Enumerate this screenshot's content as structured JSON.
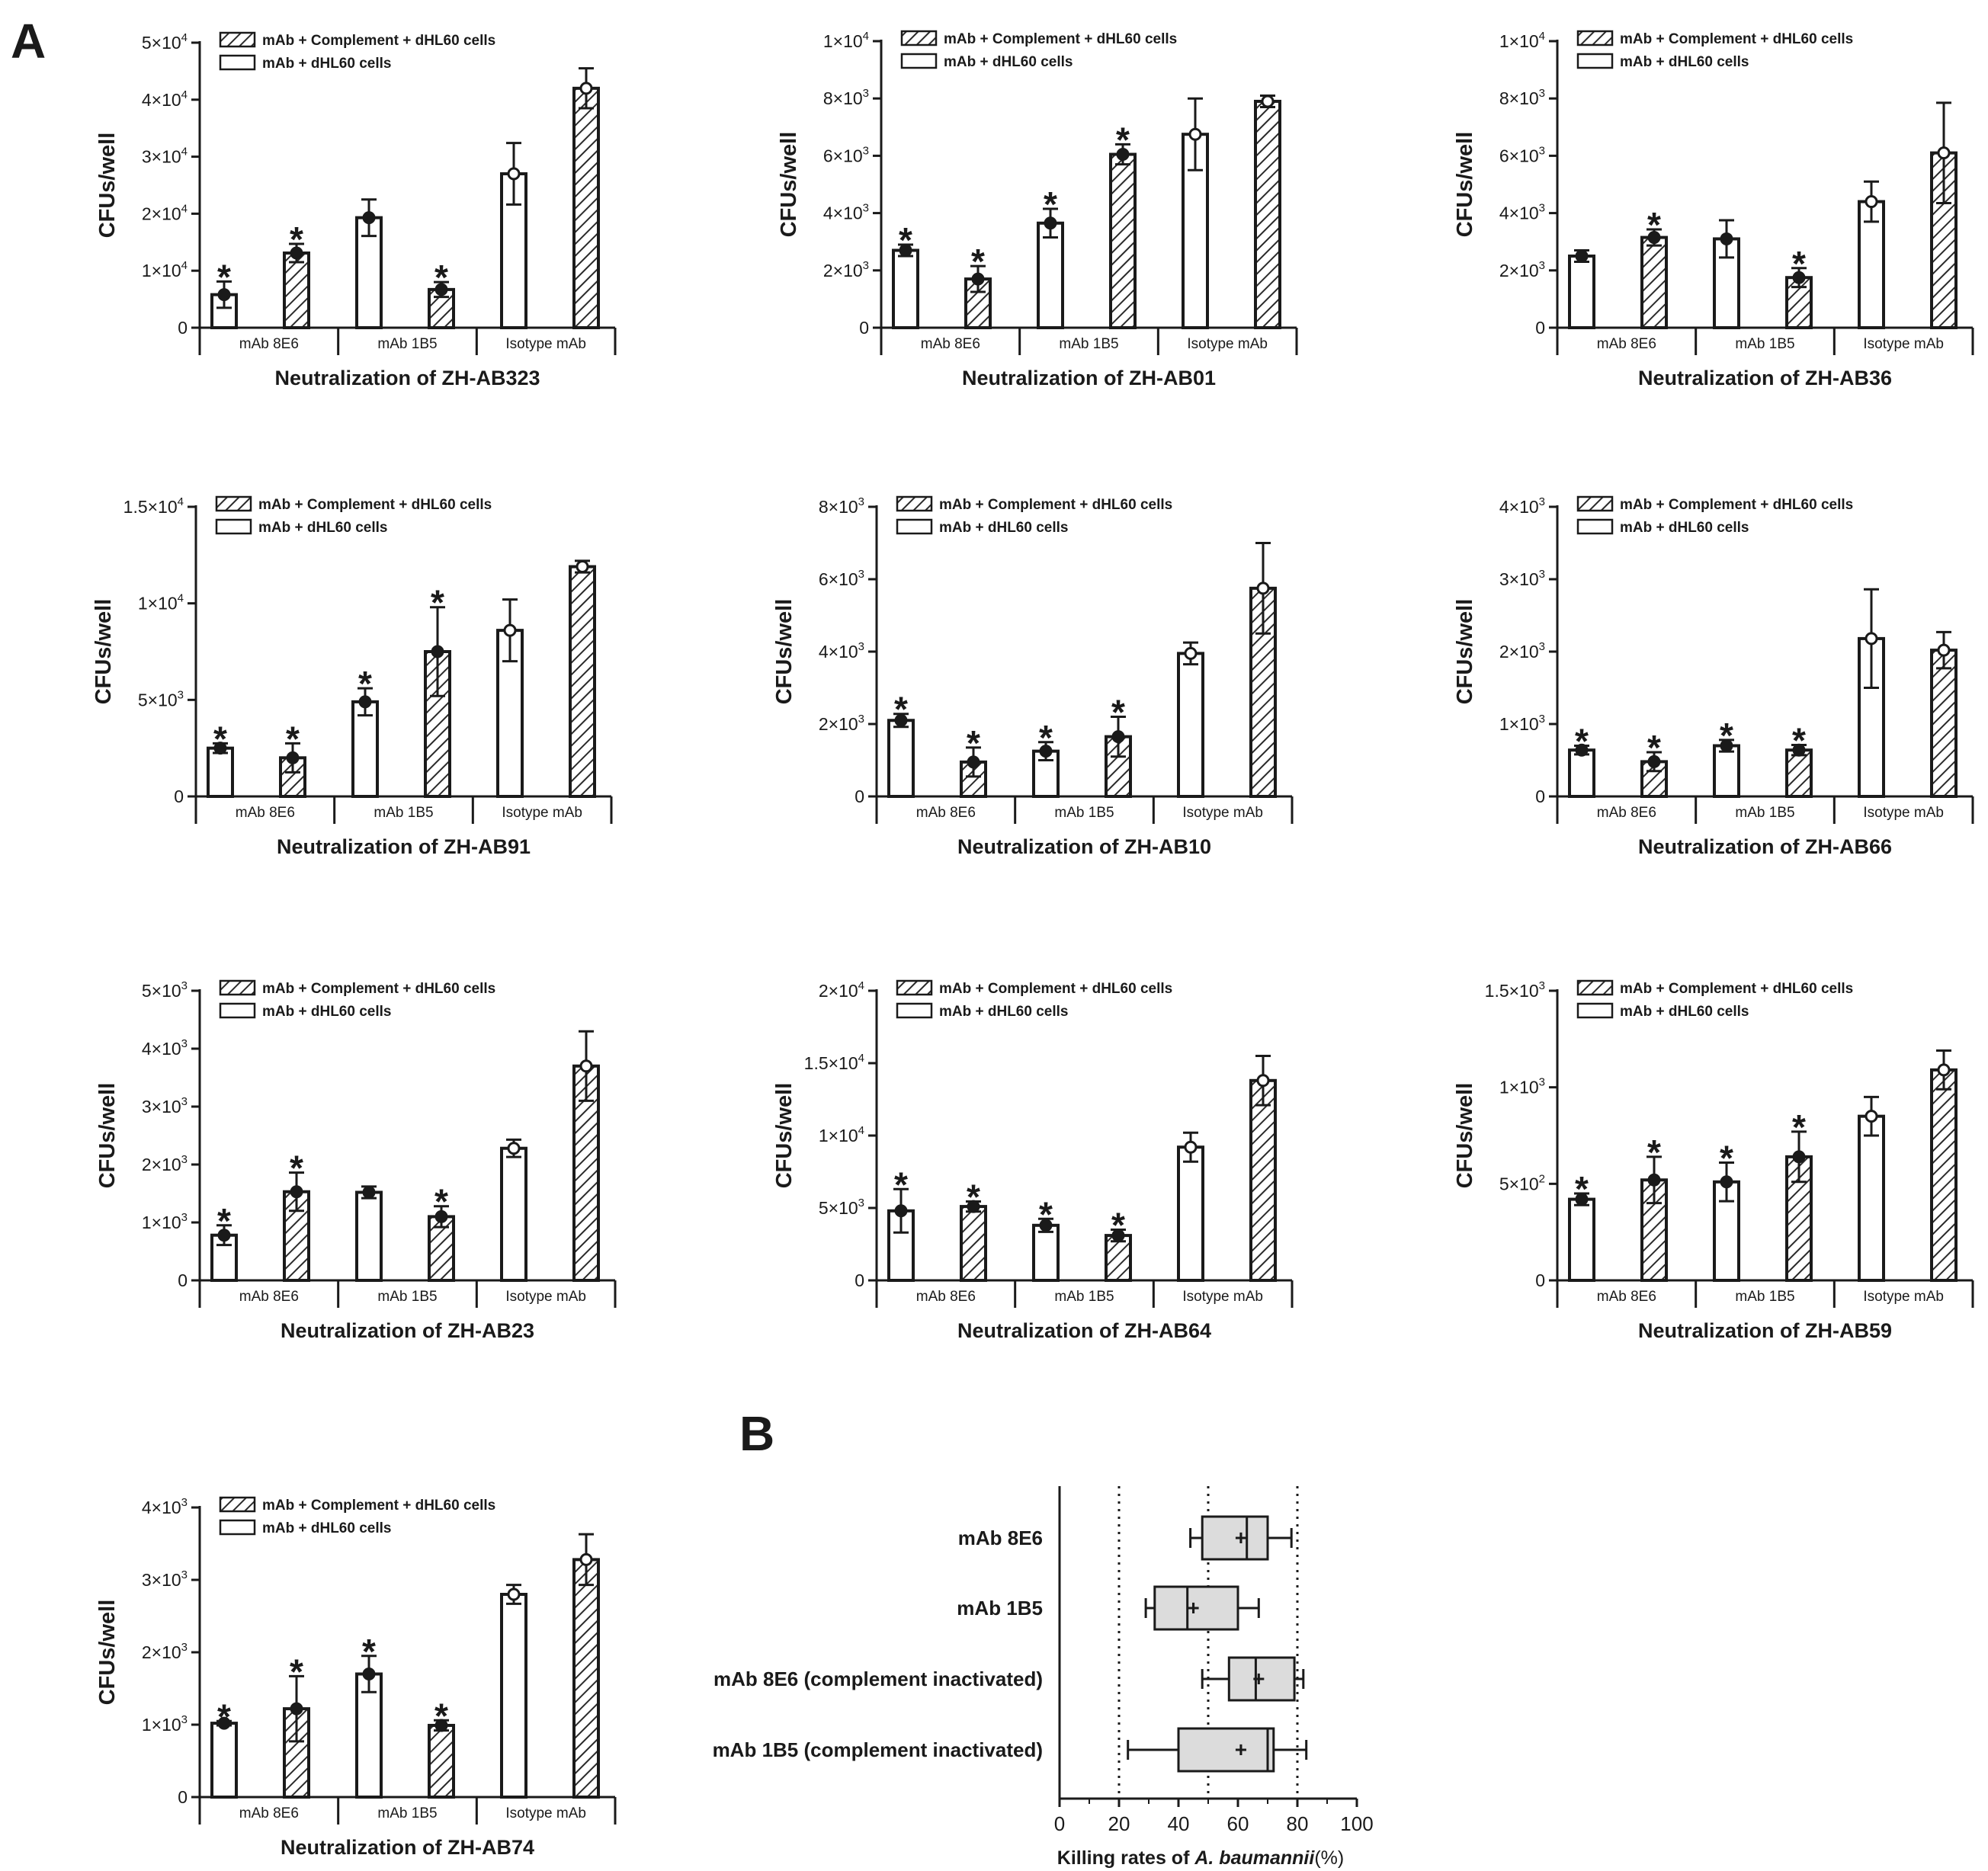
{
  "panel_labels": [
    "A",
    "B"
  ],
  "chart_data": [
    {
      "type": "bar",
      "panel": "A",
      "title": "Neutralization of ZH-AB323",
      "ylabel": "CFUs/well",
      "categories": [
        "mAb 8E6",
        "mAb 1B5",
        "Isotype mAb"
      ],
      "legend": [
        "mAb + Complement + dHL60 cells",
        "mAb + dHL60 cells"
      ],
      "ylim": [
        0,
        50000
      ],
      "yticks": [
        {
          "v": 0,
          "m": "0",
          "e": ""
        },
        {
          "v": 10000,
          "m": "1×10",
          "e": "4"
        },
        {
          "v": 20000,
          "m": "2×10",
          "e": "4"
        },
        {
          "v": 30000,
          "m": "3×10",
          "e": "4"
        },
        {
          "v": 40000,
          "m": "4×10",
          "e": "4"
        },
        {
          "v": 50000,
          "m": "5×10",
          "e": "4"
        }
      ],
      "series": [
        {
          "name": "mAb + dHL60 cells",
          "values": [
            5800,
            19300,
            27000
          ],
          "errors": [
            2300,
            3200,
            5400
          ],
          "significant": [
            true,
            false,
            false
          ]
        },
        {
          "name": "mAb + Complement + dHL60 cells",
          "values": [
            13100,
            6700,
            42000
          ],
          "errors": [
            1600,
            1300,
            3500
          ],
          "significant": [
            true,
            true,
            false
          ]
        }
      ]
    },
    {
      "type": "bar",
      "panel": "A",
      "title": "Neutralization of ZH-AB01",
      "ylabel": "CFUs/well",
      "categories": [
        "mAb 8E6",
        "mAb 1B5",
        "Isotype mAb"
      ],
      "legend": [
        "mAb + Complement + dHL60 cells",
        "mAb + dHL60 cells"
      ],
      "ylim": [
        0,
        10000
      ],
      "yticks": [
        {
          "v": 0,
          "m": "0",
          "e": ""
        },
        {
          "v": 2000,
          "m": "2×10",
          "e": "3"
        },
        {
          "v": 4000,
          "m": "4×10",
          "e": "3"
        },
        {
          "v": 6000,
          "m": "6×10",
          "e": "3"
        },
        {
          "v": 8000,
          "m": "8×10",
          "e": "3"
        },
        {
          "v": 10000,
          "m": "1×10",
          "e": "4"
        }
      ],
      "series": [
        {
          "name": "mAb + dHL60 cells",
          "values": [
            2700,
            3650,
            6750
          ],
          "errors": [
            200,
            500,
            1250
          ],
          "significant": [
            true,
            true,
            false
          ]
        },
        {
          "name": "mAb + Complement + dHL60 cells",
          "values": [
            1700,
            6050,
            7900
          ],
          "errors": [
            450,
            350,
            200
          ],
          "significant": [
            true,
            true,
            false
          ]
        }
      ]
    },
    {
      "type": "bar",
      "panel": "A",
      "title": "Neutralization of ZH-AB36",
      "ylabel": "CFUs/well",
      "categories": [
        "mAb 8E6",
        "mAb 1B5",
        "Isotype mAb"
      ],
      "legend": [
        "mAb + Complement + dHL60 cells",
        "mAb + dHL60 cells"
      ],
      "ylim": [
        0,
        10000
      ],
      "yticks": [
        {
          "v": 0,
          "m": "0",
          "e": ""
        },
        {
          "v": 2000,
          "m": "2×10",
          "e": "3"
        },
        {
          "v": 4000,
          "m": "4×10",
          "e": "3"
        },
        {
          "v": 6000,
          "m": "6×10",
          "e": "3"
        },
        {
          "v": 8000,
          "m": "8×10",
          "e": "3"
        },
        {
          "v": 10000,
          "m": "1×10",
          "e": "4"
        }
      ],
      "series": [
        {
          "name": "mAb + dHL60 cells",
          "values": [
            2500,
            3100,
            4400
          ],
          "errors": [
            200,
            650,
            700
          ],
          "significant": [
            false,
            false,
            false
          ]
        },
        {
          "name": "mAb + Complement + dHL60 cells",
          "values": [
            3150,
            1750,
            6100
          ],
          "errors": [
            280,
            330,
            1750
          ],
          "significant": [
            true,
            true,
            false
          ]
        }
      ]
    },
    {
      "type": "bar",
      "panel": "A",
      "title": "Neutralization of ZH-AB91",
      "ylabel": "CFUs/well",
      "categories": [
        "mAb 8E6",
        "mAb 1B5",
        "Isotype mAb"
      ],
      "legend": [
        "mAb + Complement + dHL60 cells",
        "mAb + dHL60 cells"
      ],
      "ylim": [
        0,
        15000
      ],
      "yticks": [
        {
          "v": 0,
          "m": "0",
          "e": ""
        },
        {
          "v": 5000,
          "m": "5×10",
          "e": "3"
        },
        {
          "v": 10000,
          "m": "1×10",
          "e": "4"
        },
        {
          "v": 15000,
          "m": "1.5×10",
          "e": "4"
        }
      ],
      "series": [
        {
          "name": "mAb + dHL60 cells",
          "values": [
            2500,
            4900,
            8600
          ],
          "errors": [
            250,
            700,
            1600
          ],
          "significant": [
            true,
            true,
            false
          ]
        },
        {
          "name": "mAb + Complement + dHL60 cells",
          "values": [
            2000,
            7500,
            11900
          ],
          "errors": [
            750,
            2300,
            300
          ],
          "significant": [
            true,
            true,
            false
          ]
        }
      ]
    },
    {
      "type": "bar",
      "panel": "A",
      "title": "Neutralization of ZH-AB10",
      "ylabel": "CFUs/well",
      "categories": [
        "mAb 8E6",
        "mAb 1B5",
        "Isotype mAb"
      ],
      "legend": [
        "mAb + Complement + dHL60 cells",
        "mAb + dHL60 cells"
      ],
      "ylim": [
        0,
        8000
      ],
      "yticks": [
        {
          "v": 0,
          "m": "0",
          "e": ""
        },
        {
          "v": 2000,
          "m": "2×10",
          "e": "3"
        },
        {
          "v": 4000,
          "m": "4×10",
          "e": "3"
        },
        {
          "v": 6000,
          "m": "6×10",
          "e": "3"
        },
        {
          "v": 8000,
          "m": "8×10",
          "e": "3"
        }
      ],
      "series": [
        {
          "name": "mAb + dHL60 cells",
          "values": [
            2100,
            1250,
            3950
          ],
          "errors": [
            180,
            250,
            300
          ],
          "significant": [
            true,
            true,
            false
          ]
        },
        {
          "name": "mAb + Complement + dHL60 cells",
          "values": [
            950,
            1650,
            5750
          ],
          "errors": [
            400,
            550,
            1250
          ],
          "significant": [
            true,
            true,
            false
          ]
        }
      ]
    },
    {
      "type": "bar",
      "panel": "A",
      "title": "Neutralization of ZH-AB66",
      "ylabel": "CFUs/well",
      "categories": [
        "mAb 8E6",
        "mAb 1B5",
        "Isotype mAb"
      ],
      "legend": [
        "mAb + Complement + dHL60 cells",
        "mAb + dHL60 cells"
      ],
      "ylim": [
        0,
        4000
      ],
      "yticks": [
        {
          "v": 0,
          "m": "0",
          "e": ""
        },
        {
          "v": 1000,
          "m": "1×10",
          "e": "3"
        },
        {
          "v": 2000,
          "m": "2×10",
          "e": "3"
        },
        {
          "v": 3000,
          "m": "3×10",
          "e": "3"
        },
        {
          "v": 4000,
          "m": "4×10",
          "e": "3"
        }
      ],
      "series": [
        {
          "name": "mAb + dHL60 cells",
          "values": [
            640,
            700,
            2180
          ],
          "errors": [
            60,
            80,
            680
          ],
          "significant": [
            true,
            true,
            false
          ]
        },
        {
          "name": "mAb + Complement + dHL60 cells",
          "values": [
            480,
            640,
            2020
          ],
          "errors": [
            130,
            70,
            250
          ],
          "significant": [
            true,
            true,
            false
          ]
        }
      ]
    },
    {
      "type": "bar",
      "panel": "A",
      "title": "Neutralization of ZH-AB23",
      "ylabel": "CFUs/well",
      "categories": [
        "mAb 8E6",
        "mAb 1B5",
        "Isotype mAb"
      ],
      "legend": [
        "mAb + Complement + dHL60 cells",
        "mAb + dHL60 cells"
      ],
      "ylim": [
        0,
        5000
      ],
      "yticks": [
        {
          "v": 0,
          "m": "0",
          "e": ""
        },
        {
          "v": 1000,
          "m": "1×10",
          "e": "3"
        },
        {
          "v": 2000,
          "m": "2×10",
          "e": "3"
        },
        {
          "v": 3000,
          "m": "3×10",
          "e": "3"
        },
        {
          "v": 4000,
          "m": "4×10",
          "e": "3"
        },
        {
          "v": 5000,
          "m": "5×10",
          "e": "3"
        }
      ],
      "series": [
        {
          "name": "mAb + dHL60 cells",
          "values": [
            780,
            1520,
            2280
          ],
          "errors": [
            170,
            100,
            150
          ],
          "significant": [
            true,
            false,
            false
          ]
        },
        {
          "name": "mAb + Complement + dHL60 cells",
          "values": [
            1530,
            1100,
            3700
          ],
          "errors": [
            330,
            180,
            600
          ],
          "significant": [
            true,
            true,
            false
          ]
        }
      ]
    },
    {
      "type": "bar",
      "panel": "A",
      "title": "Neutralization of ZH-AB64",
      "ylabel": "CFUs/well",
      "categories": [
        "mAb 8E6",
        "mAb 1B5",
        "Isotype mAb"
      ],
      "legend": [
        "mAb + Complement + dHL60 cells",
        "mAb + dHL60 cells"
      ],
      "ylim": [
        0,
        20000
      ],
      "yticks": [
        {
          "v": 0,
          "m": "0",
          "e": ""
        },
        {
          "v": 5000,
          "m": "5×10",
          "e": "3"
        },
        {
          "v": 10000,
          "m": "1×10",
          "e": "4"
        },
        {
          "v": 15000,
          "m": "1.5×10",
          "e": "4"
        },
        {
          "v": 20000,
          "m": "2×10",
          "e": "4"
        }
      ],
      "series": [
        {
          "name": "mAb + dHL60 cells",
          "values": [
            4800,
            3800,
            9200
          ],
          "errors": [
            1500,
            450,
            1000
          ],
          "significant": [
            true,
            true,
            false
          ]
        },
        {
          "name": "mAb + Complement + dHL60 cells",
          "values": [
            5100,
            3100,
            13800
          ],
          "errors": [
            350,
            400,
            1700
          ],
          "significant": [
            true,
            true,
            false
          ]
        }
      ]
    },
    {
      "type": "bar",
      "panel": "A",
      "title": "Neutralization of ZH-AB59",
      "ylabel": "CFUs/well",
      "categories": [
        "mAb 8E6",
        "mAb 1B5",
        "Isotype mAb"
      ],
      "legend": [
        "mAb + Complement + dHL60 cells",
        "mAb + dHL60 cells"
      ],
      "ylim": [
        0,
        1500
      ],
      "yticks": [
        {
          "v": 0,
          "m": "0",
          "e": ""
        },
        {
          "v": 500,
          "m": "5×10",
          "e": "2"
        },
        {
          "v": 1000,
          "m": "1×10",
          "e": "3"
        },
        {
          "v": 1500,
          "m": "1.5×10",
          "e": "3"
        }
      ],
      "series": [
        {
          "name": "mAb + dHL60 cells",
          "values": [
            420,
            510,
            850
          ],
          "errors": [
            30,
            100,
            100
          ],
          "significant": [
            true,
            true,
            false
          ]
        },
        {
          "name": "mAb + Complement + dHL60 cells",
          "values": [
            520,
            640,
            1090
          ],
          "errors": [
            120,
            130,
            100
          ],
          "significant": [
            true,
            true,
            false
          ]
        }
      ]
    },
    {
      "type": "bar",
      "panel": "A",
      "title": "Neutralization of ZH-AB74",
      "ylabel": "CFUs/well",
      "categories": [
        "mAb 8E6",
        "mAb 1B5",
        "Isotype mAb"
      ],
      "legend": [
        "mAb + Complement + dHL60 cells",
        "mAb + dHL60 cells"
      ],
      "ylim": [
        0,
        4000
      ],
      "yticks": [
        {
          "v": 0,
          "m": "0",
          "e": ""
        },
        {
          "v": 1000,
          "m": "1×10",
          "e": "3"
        },
        {
          "v": 2000,
          "m": "2×10",
          "e": "3"
        },
        {
          "v": 3000,
          "m": "3×10",
          "e": "3"
        },
        {
          "v": 4000,
          "m": "4×10",
          "e": "3"
        }
      ],
      "series": [
        {
          "name": "mAb + dHL60 cells",
          "values": [
            1020,
            1700,
            2800
          ],
          "errors": [
            30,
            250,
            130
          ],
          "significant": [
            true,
            true,
            false
          ]
        },
        {
          "name": "mAb + Complement + dHL60 cells",
          "values": [
            1220,
            990,
            3280
          ],
          "errors": [
            450,
            70,
            350
          ],
          "significant": [
            true,
            true,
            false
          ]
        }
      ]
    },
    {
      "type": "box",
      "panel": "B",
      "title": "",
      "xlabel_prefix": "Killing rates of ",
      "xlabel_italic": "A. baumannii",
      "xlabel_suffix": "(%)",
      "xlim": [
        0,
        100
      ],
      "xticks": [
        0,
        20,
        40,
        60,
        80,
        100
      ],
      "reference_lines": [
        20,
        50,
        80
      ],
      "categories": [
        "mAb 8E6",
        "mAb 1B5",
        "mAb 8E6 (complement inactivated)",
        "mAb 1B5 (complement inactivated)"
      ],
      "boxes": [
        {
          "min": 44,
          "q1": 48,
          "median": 63,
          "q3": 70,
          "max": 78,
          "mean": 61
        },
        {
          "min": 29,
          "q1": 32,
          "median": 43,
          "q3": 60,
          "max": 67,
          "mean": 45
        },
        {
          "min": 48,
          "q1": 57,
          "median": 66,
          "q3": 79,
          "max": 82,
          "mean": 67
        },
        {
          "min": 23,
          "q1": 40,
          "median": 70,
          "q3": 72,
          "max": 83,
          "mean": 61
        }
      ]
    }
  ]
}
